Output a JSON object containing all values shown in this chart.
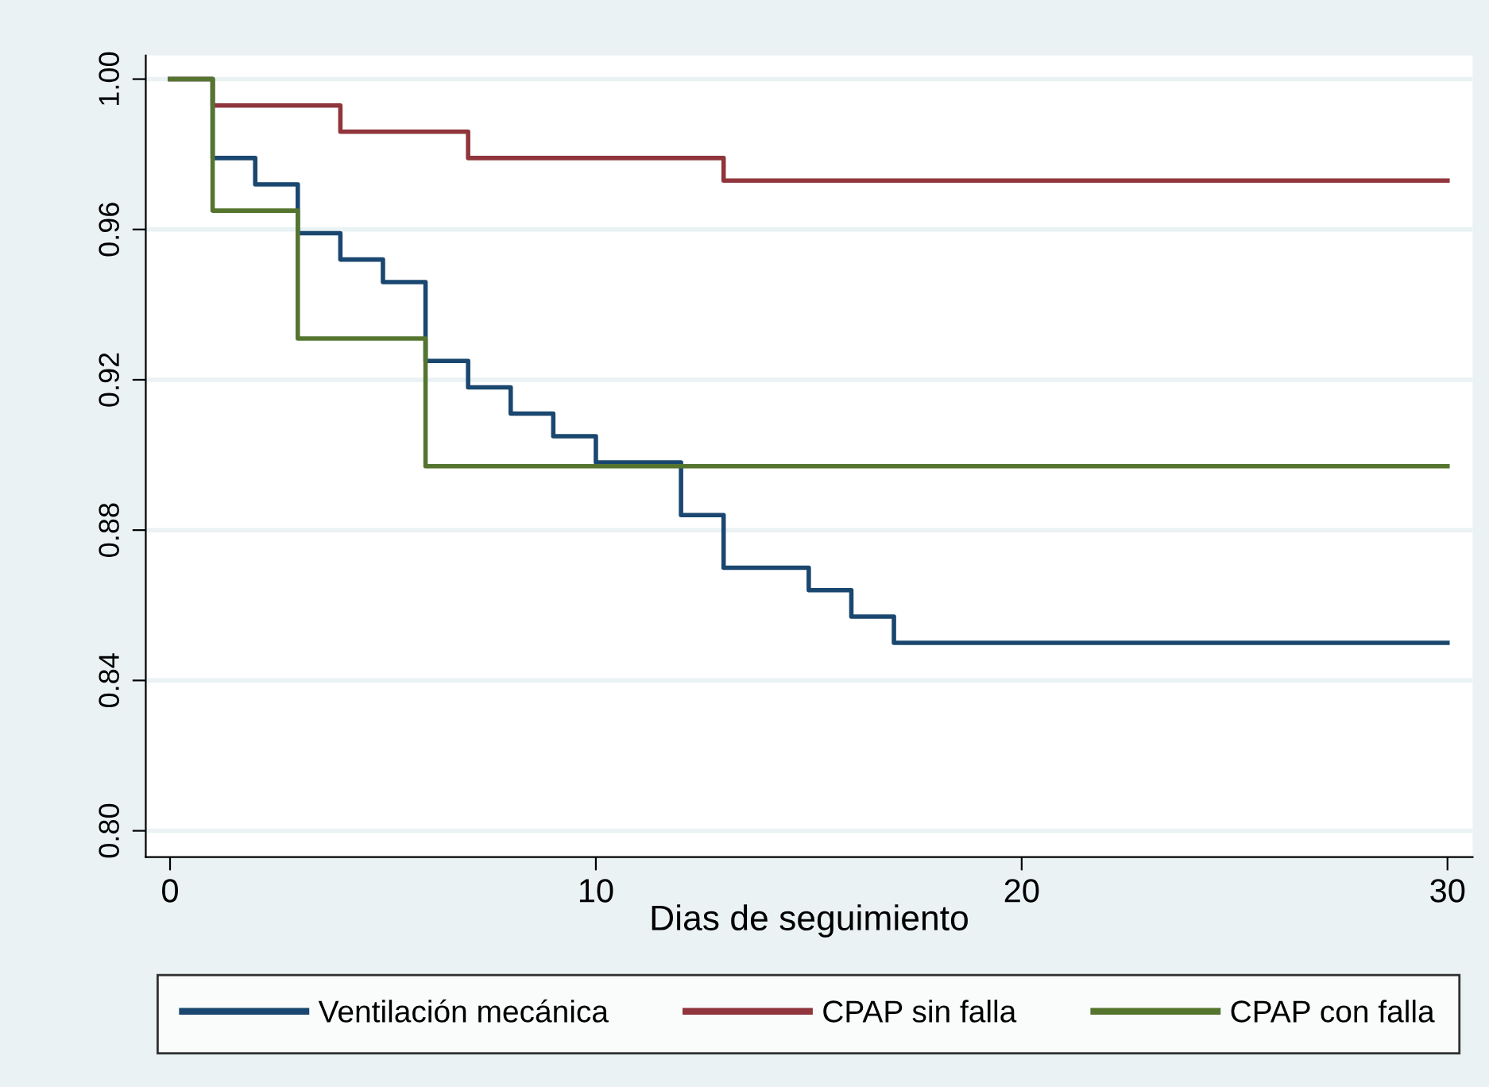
{
  "chart_data": {
    "type": "step",
    "xlabel": "Dias de seguimiento",
    "xlim": [
      -0.57,
      30.59
    ],
    "xticks": [
      0,
      10,
      20,
      30
    ],
    "ylim": [
      0.793,
      1.0063
    ],
    "yticks": [
      {
        "value": 0.8,
        "label": "0.80"
      },
      {
        "value": 0.84,
        "label": "0.84"
      },
      {
        "value": 0.88,
        "label": "0.88"
      },
      {
        "value": 0.92,
        "label": "0.92"
      },
      {
        "value": 0.96,
        "label": "0.96"
      },
      {
        "value": 1.0,
        "label": "1.00"
      }
    ],
    "grid": "y",
    "legend": "bottom",
    "marker": "none",
    "line_style": "solid",
    "series": [
      {
        "name": "Ventilación mecánica",
        "color": "#1a476f",
        "x": [
          0,
          1,
          2,
          3,
          4,
          5,
          6,
          7,
          8,
          9,
          10,
          12,
          13,
          15,
          16,
          17,
          30
        ],
        "values": [
          1.0,
          0.979,
          0.972,
          0.959,
          0.952,
          0.946,
          0.925,
          0.918,
          0.911,
          0.905,
          0.898,
          0.884,
          0.87,
          0.864,
          0.857,
          0.85,
          0.85
        ]
      },
      {
        "name": "CPAP sin falla",
        "color": "#90353b",
        "x": [
          0,
          1,
          4,
          7,
          13,
          30
        ],
        "values": [
          1.0,
          0.993,
          0.986,
          0.979,
          0.973,
          0.973
        ]
      },
      {
        "name": "CPAP con falla",
        "color": "#55752f",
        "x": [
          0,
          1,
          3,
          6,
          30
        ],
        "values": [
          1.0,
          0.965,
          0.931,
          0.897,
          0.897
        ]
      }
    ]
  }
}
